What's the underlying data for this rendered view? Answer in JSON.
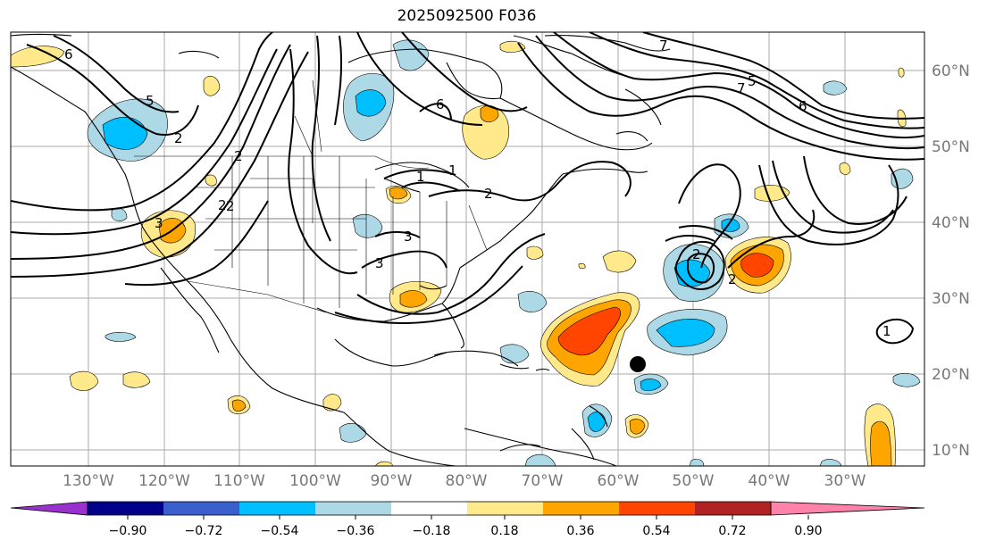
{
  "title": "2025092500 F036",
  "longitude_labels": [
    "130°W",
    "120°W",
    "110°W",
    "100°W",
    "90°W",
    "80°W",
    "70°W",
    "60°W",
    "50°W",
    "40°W",
    "30°W"
  ],
  "latitude_labels": [
    "60°N",
    "50°N",
    "40°N",
    "30°N",
    "20°N",
    "10°N"
  ],
  "colorbar": {
    "ticks": [
      "−0.90",
      "−0.72",
      "−0.54",
      "−0.36",
      "−0.18",
      "0.18",
      "0.36",
      "0.54",
      "0.72",
      "0.90"
    ],
    "colors": [
      "#9932cc",
      "#00008b",
      "#3a5fcd",
      "#00bfff",
      "#add8e6",
      "#ffffff",
      "#ffe98a",
      "#ffa500",
      "#ff4500",
      "#b22222",
      "#ff82ab"
    ]
  },
  "contour_labels": [
    "6",
    "5",
    "2",
    "2",
    "1",
    "3",
    "3",
    "2",
    "2",
    "7",
    "6",
    "6",
    "5",
    "7",
    "1",
    "2",
    "3",
    "2",
    "2",
    "1"
  ],
  "marker": {
    "type": "storm-center",
    "color": "#000000"
  }
}
